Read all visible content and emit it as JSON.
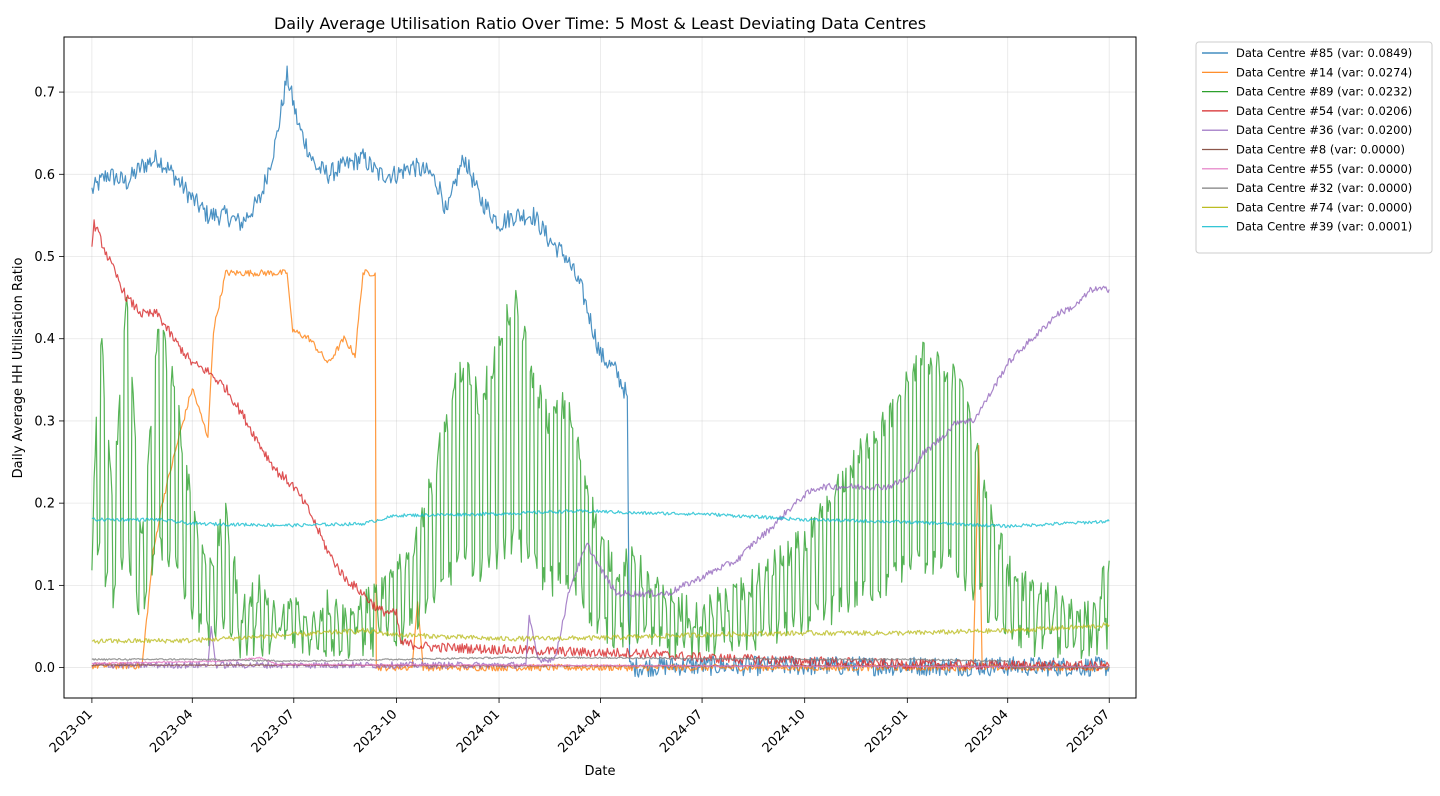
{
  "chart_data": {
    "type": "line",
    "title": "Daily Average Utilisation Ratio Over Time: 5 Most & Least Deviating Data Centres",
    "xlabel": "Date",
    "ylabel": "Daily Average HH Utilisation Ratio",
    "x_range": [
      "2022-12-07",
      "2025-07-25"
    ],
    "ylim": [
      -0.037,
      0.767
    ],
    "x_ticks": [
      "2023-01",
      "2023-04",
      "2023-07",
      "2023-10",
      "2024-01",
      "2024-04",
      "2024-07",
      "2024-10",
      "2025-01",
      "2025-04",
      "2025-07"
    ],
    "y_ticks": [
      "0.0",
      "0.1",
      "0.2",
      "0.3",
      "0.4",
      "0.5",
      "0.6",
      "0.7"
    ],
    "grid": true,
    "legend_position": "outside-top-right",
    "series": [
      {
        "name": "Data Centre #85 (var: 0.0849)",
        "color": "#1f77b4",
        "points": [
          [
            "2023-01-01",
            0.58
          ],
          [
            "2023-01-15",
            0.6
          ],
          [
            "2023-02-01",
            0.59
          ],
          [
            "2023-02-15",
            0.61
          ],
          [
            "2023-03-01",
            0.62
          ],
          [
            "2023-03-15",
            0.6
          ],
          [
            "2023-04-01",
            0.57
          ],
          [
            "2023-04-15",
            0.55
          ],
          [
            "2023-05-01",
            0.55
          ],
          [
            "2023-05-15",
            0.54
          ],
          [
            "2023-06-01",
            0.57
          ],
          [
            "2023-06-15",
            0.64
          ],
          [
            "2023-06-25",
            0.72
          ],
          [
            "2023-07-05",
            0.66
          ],
          [
            "2023-07-20",
            0.61
          ],
          [
            "2023-08-01",
            0.6
          ],
          [
            "2023-08-15",
            0.61
          ],
          [
            "2023-09-01",
            0.62
          ],
          [
            "2023-09-15",
            0.6
          ],
          [
            "2023-10-01",
            0.6
          ],
          [
            "2023-10-15",
            0.61
          ],
          [
            "2023-11-01",
            0.6
          ],
          [
            "2023-11-10",
            0.58
          ],
          [
            "2023-11-15",
            0.55
          ],
          [
            "2023-11-25",
            0.6
          ],
          [
            "2023-12-01",
            0.62
          ],
          [
            "2023-12-15",
            0.57
          ],
          [
            "2024-01-01",
            0.54
          ],
          [
            "2024-01-15",
            0.55
          ],
          [
            "2024-02-01",
            0.55
          ],
          [
            "2024-02-15",
            0.52
          ],
          [
            "2024-03-01",
            0.5
          ],
          [
            "2024-03-15",
            0.46
          ],
          [
            "2024-04-01",
            0.38
          ],
          [
            "2024-04-15",
            0.36
          ],
          [
            "2024-04-25",
            0.33
          ],
          [
            "2024-04-27",
            0.0
          ],
          [
            "2024-06-01",
            0.002
          ],
          [
            "2024-09-01",
            0.002
          ],
          [
            "2025-01-01",
            0.002
          ],
          [
            "2025-07-01",
            0.001
          ]
        ]
      },
      {
        "name": "Data Centre #14 (var: 0.0274)",
        "color": "#ff7f0e",
        "points": [
          [
            "2023-01-01",
            0.002
          ],
          [
            "2023-02-15",
            0.002
          ],
          [
            "2023-02-25",
            0.14
          ],
          [
            "2023-03-05",
            0.2
          ],
          [
            "2023-03-20",
            0.28
          ],
          [
            "2023-04-01",
            0.34
          ],
          [
            "2023-04-15",
            0.28
          ],
          [
            "2023-04-20",
            0.41
          ],
          [
            "2023-05-01",
            0.48
          ],
          [
            "2023-05-15",
            0.48
          ],
          [
            "2023-06-01",
            0.48
          ],
          [
            "2023-06-25",
            0.48
          ],
          [
            "2023-06-30",
            0.41
          ],
          [
            "2023-07-15",
            0.4
          ],
          [
            "2023-08-01",
            0.37
          ],
          [
            "2023-08-15",
            0.4
          ],
          [
            "2023-08-25",
            0.38
          ],
          [
            "2023-09-01",
            0.48
          ],
          [
            "2023-09-12",
            0.48
          ],
          [
            "2023-09-13",
            0.0
          ],
          [
            "2023-10-15",
            0.0
          ],
          [
            "2023-10-20",
            0.08
          ],
          [
            "2023-10-25",
            0.0
          ],
          [
            "2024-06-01",
            0.0
          ],
          [
            "2025-03-01",
            0.0
          ],
          [
            "2025-03-06",
            0.27
          ],
          [
            "2025-03-09",
            0.0
          ],
          [
            "2025-07-01",
            0.0
          ]
        ]
      },
      {
        "name": "Data Centre #89 (var: 0.0232)",
        "color": "#2ca02c",
        "points": [
          [
            "2023-01-01",
            0.13
          ],
          [
            "2023-01-08",
            0.42
          ],
          [
            "2023-01-20",
            0.2
          ],
          [
            "2023-02-01",
            0.45
          ],
          [
            "2023-02-15",
            0.15
          ],
          [
            "2023-03-01",
            0.42
          ],
          [
            "2023-03-15",
            0.35
          ],
          [
            "2023-04-01",
            0.2
          ],
          [
            "2023-04-15",
            0.12
          ],
          [
            "2023-05-01",
            0.18
          ],
          [
            "2023-05-15",
            0.07
          ],
          [
            "2023-06-01",
            0.1
          ],
          [
            "2023-06-15",
            0.06
          ],
          [
            "2023-07-01",
            0.08
          ],
          [
            "2023-07-15",
            0.05
          ],
          [
            "2023-08-01",
            0.08
          ],
          [
            "2023-08-15",
            0.06
          ],
          [
            "2023-09-01",
            0.08
          ],
          [
            "2023-09-15",
            0.09
          ],
          [
            "2023-10-01",
            0.12
          ],
          [
            "2023-10-15",
            0.15
          ],
          [
            "2023-11-01",
            0.22
          ],
          [
            "2023-11-15",
            0.3
          ],
          [
            "2023-12-01",
            0.38
          ],
          [
            "2023-12-15",
            0.32
          ],
          [
            "2024-01-01",
            0.4
          ],
          [
            "2024-01-15",
            0.45
          ],
          [
            "2024-02-01",
            0.35
          ],
          [
            "2024-02-15",
            0.3
          ],
          [
            "2024-03-01",
            0.32
          ],
          [
            "2024-03-15",
            0.25
          ],
          [
            "2024-04-01",
            0.15
          ],
          [
            "2024-04-15",
            0.12
          ],
          [
            "2024-05-01",
            0.13
          ],
          [
            "2024-05-15",
            0.1
          ],
          [
            "2024-06-01",
            0.08
          ],
          [
            "2024-06-15",
            0.07
          ],
          [
            "2024-07-01",
            0.06
          ],
          [
            "2024-07-15",
            0.08
          ],
          [
            "2024-08-01",
            0.09
          ],
          [
            "2024-08-15",
            0.1
          ],
          [
            "2024-09-01",
            0.12
          ],
          [
            "2024-09-15",
            0.14
          ],
          [
            "2024-10-01",
            0.15
          ],
          [
            "2024-10-15",
            0.18
          ],
          [
            "2024-11-01",
            0.22
          ],
          [
            "2024-11-15",
            0.25
          ],
          [
            "2024-12-01",
            0.28
          ],
          [
            "2024-12-15",
            0.3
          ],
          [
            "2025-01-01",
            0.35
          ],
          [
            "2025-01-15",
            0.38
          ],
          [
            "2025-02-01",
            0.36
          ],
          [
            "2025-02-15",
            0.35
          ],
          [
            "2025-03-01",
            0.28
          ],
          [
            "2025-03-15",
            0.2
          ],
          [
            "2025-04-01",
            0.12
          ],
          [
            "2025-04-15",
            0.1
          ],
          [
            "2025-05-01",
            0.09
          ],
          [
            "2025-05-15",
            0.08
          ],
          [
            "2025-06-01",
            0.07
          ],
          [
            "2025-06-15",
            0.06
          ],
          [
            "2025-07-01",
            0.13
          ]
        ]
      },
      {
        "name": "Data Centre #54 (var: 0.0206)",
        "color": "#d62728",
        "points": [
          [
            "2023-01-01",
            0.51
          ],
          [
            "2023-01-03",
            0.54
          ],
          [
            "2023-01-15",
            0.5
          ],
          [
            "2023-02-01",
            0.45
          ],
          [
            "2023-02-15",
            0.43
          ],
          [
            "2023-03-01",
            0.43
          ],
          [
            "2023-03-15",
            0.4
          ],
          [
            "2023-04-01",
            0.37
          ],
          [
            "2023-04-15",
            0.36
          ],
          [
            "2023-05-01",
            0.34
          ],
          [
            "2023-05-15",
            0.31
          ],
          [
            "2023-06-01",
            0.27
          ],
          [
            "2023-06-15",
            0.24
          ],
          [
            "2023-07-01",
            0.22
          ],
          [
            "2023-07-15",
            0.19
          ],
          [
            "2023-08-01",
            0.14
          ],
          [
            "2023-08-15",
            0.11
          ],
          [
            "2023-09-01",
            0.09
          ],
          [
            "2023-09-15",
            0.07
          ],
          [
            "2023-10-01",
            0.065
          ],
          [
            "2023-10-05",
            0.03
          ],
          [
            "2023-11-01",
            0.025
          ],
          [
            "2024-01-01",
            0.022
          ],
          [
            "2024-04-01",
            0.018
          ],
          [
            "2024-05-01",
            0.018
          ],
          [
            "2024-07-01",
            0.012
          ],
          [
            "2024-10-01",
            0.008
          ],
          [
            "2025-01-01",
            0.004
          ],
          [
            "2025-07-01",
            0.002
          ]
        ]
      },
      {
        "name": "Data Centre #36 (var: 0.0200)",
        "color": "#9467bd",
        "points": [
          [
            "2023-01-01",
            0.003
          ],
          [
            "2023-04-15",
            0.003
          ],
          [
            "2023-04-18",
            0.05
          ],
          [
            "2023-04-22",
            0.003
          ],
          [
            "2023-06-01",
            0.003
          ],
          [
            "2024-01-01",
            0.003
          ],
          [
            "2024-01-25",
            0.003
          ],
          [
            "2024-01-28",
            0.06
          ],
          [
            "2024-02-05",
            0.01
          ],
          [
            "2024-02-20",
            0.01
          ],
          [
            "2024-03-05",
            0.1
          ],
          [
            "2024-03-20",
            0.15
          ],
          [
            "2024-04-01",
            0.12
          ],
          [
            "2024-04-15",
            0.09
          ],
          [
            "2024-05-01",
            0.09
          ],
          [
            "2024-05-15",
            0.09
          ],
          [
            "2024-06-01",
            0.09
          ],
          [
            "2024-06-15",
            0.1
          ],
          [
            "2024-07-01",
            0.11
          ],
          [
            "2024-07-15",
            0.12
          ],
          [
            "2024-08-01",
            0.13
          ],
          [
            "2024-08-15",
            0.15
          ],
          [
            "2024-09-01",
            0.17
          ],
          [
            "2024-09-15",
            0.19
          ],
          [
            "2024-10-01",
            0.21
          ],
          [
            "2024-10-15",
            0.22
          ],
          [
            "2024-11-01",
            0.22
          ],
          [
            "2024-11-15",
            0.22
          ],
          [
            "2024-12-01",
            0.22
          ],
          [
            "2024-12-15",
            0.22
          ],
          [
            "2025-01-01",
            0.23
          ],
          [
            "2025-01-15",
            0.26
          ],
          [
            "2025-02-01",
            0.28
          ],
          [
            "2025-02-15",
            0.3
          ],
          [
            "2025-03-01",
            0.3
          ],
          [
            "2025-03-15",
            0.33
          ],
          [
            "2025-04-01",
            0.37
          ],
          [
            "2025-04-15",
            0.39
          ],
          [
            "2025-05-01",
            0.41
          ],
          [
            "2025-05-15",
            0.43
          ],
          [
            "2025-06-01",
            0.44
          ],
          [
            "2025-06-15",
            0.46
          ],
          [
            "2025-07-01",
            0.46
          ]
        ]
      },
      {
        "name": "Data Centre #8 (var: 0.0000)",
        "color": "#8c564b",
        "points": [
          [
            "2023-01-01",
            0.003
          ],
          [
            "2023-07-01",
            0.003
          ],
          [
            "2024-01-01",
            0.002
          ],
          [
            "2024-07-01",
            0.002
          ],
          [
            "2025-01-01",
            0.002
          ],
          [
            "2025-07-01",
            0.001
          ]
        ]
      },
      {
        "name": "Data Centre #55 (var: 0.0000)",
        "color": "#e377c2",
        "points": [
          [
            "2023-01-01",
            0.005
          ],
          [
            "2023-05-01",
            0.008
          ],
          [
            "2023-06-01",
            0.012
          ],
          [
            "2023-06-15",
            0.004
          ],
          [
            "2023-10-01",
            0.003
          ],
          [
            "2024-01-01",
            0.003
          ],
          [
            "2024-07-01",
            0.002
          ],
          [
            "2025-07-01",
            0.001
          ]
        ]
      },
      {
        "name": "Data Centre #32 (var: 0.0000)",
        "color": "#7f7f7f",
        "points": [
          [
            "2023-01-01",
            0.01
          ],
          [
            "2023-04-01",
            0.01
          ],
          [
            "2023-07-01",
            0.008
          ],
          [
            "2023-10-01",
            0.01
          ],
          [
            "2024-01-01",
            0.012
          ],
          [
            "2024-04-01",
            0.012
          ],
          [
            "2024-07-01",
            0.011
          ],
          [
            "2024-10-01",
            0.01
          ],
          [
            "2025-01-01",
            0.01
          ],
          [
            "2025-04-01",
            0.008
          ],
          [
            "2025-04-05",
            0.0
          ],
          [
            "2025-07-01",
            0.0
          ]
        ]
      },
      {
        "name": "Data Centre #74 (var: 0.0000)",
        "color": "#bcbd22",
        "points": [
          [
            "2023-01-01",
            0.032
          ],
          [
            "2023-04-01",
            0.033
          ],
          [
            "2023-07-01",
            0.04
          ],
          [
            "2023-09-01",
            0.045
          ],
          [
            "2023-10-01",
            0.04
          ],
          [
            "2024-01-01",
            0.035
          ],
          [
            "2024-04-01",
            0.036
          ],
          [
            "2024-07-01",
            0.04
          ],
          [
            "2024-10-01",
            0.042
          ],
          [
            "2025-01-01",
            0.042
          ],
          [
            "2025-04-01",
            0.045
          ],
          [
            "2025-06-15",
            0.05
          ],
          [
            "2025-07-01",
            0.052
          ]
        ]
      },
      {
        "name": "Data Centre #39 (var: 0.0001)",
        "color": "#17becf",
        "points": [
          [
            "2023-01-01",
            0.18
          ],
          [
            "2023-03-01",
            0.18
          ],
          [
            "2023-04-01",
            0.175
          ],
          [
            "2023-07-01",
            0.173
          ],
          [
            "2023-09-01",
            0.175
          ],
          [
            "2023-10-01",
            0.185
          ],
          [
            "2024-01-01",
            0.187
          ],
          [
            "2024-03-01",
            0.19
          ],
          [
            "2024-04-01",
            0.19
          ],
          [
            "2024-05-01",
            0.188
          ],
          [
            "2024-07-01",
            0.187
          ],
          [
            "2024-10-01",
            0.18
          ],
          [
            "2025-01-01",
            0.177
          ],
          [
            "2025-04-01",
            0.172
          ],
          [
            "2025-07-01",
            0.178
          ]
        ]
      }
    ]
  }
}
